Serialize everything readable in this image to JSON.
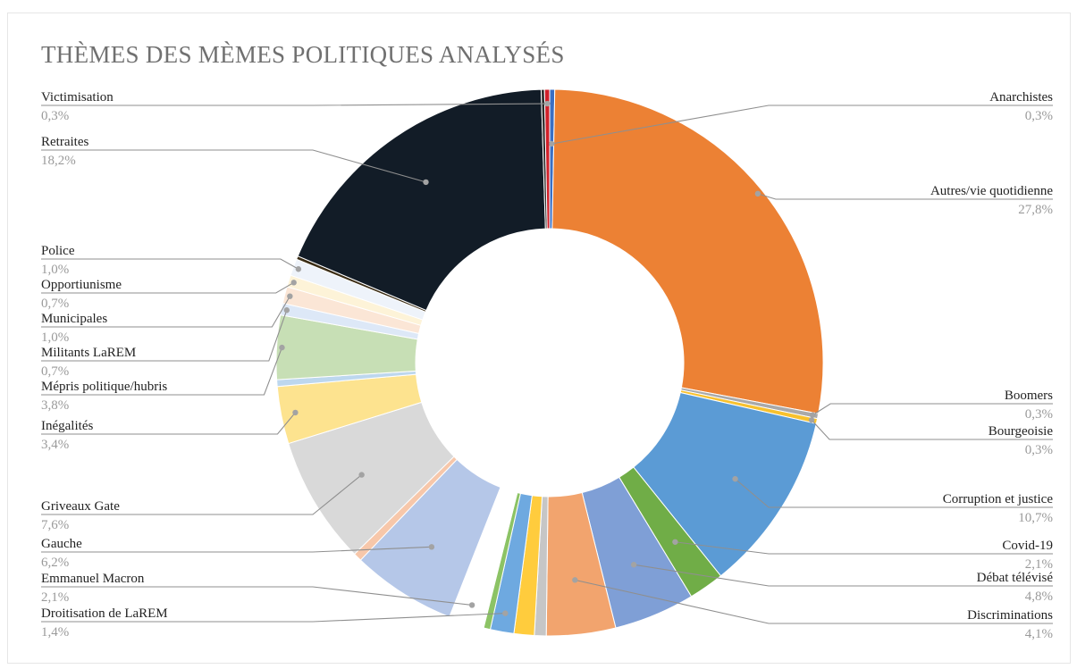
{
  "chart_data": {
    "type": "pie",
    "title": "THÈMES DES MÈMES POLITIQUES ANALYSÉS",
    "legend": "none",
    "slices": [
      {
        "label": "Anarchistes",
        "value": 0.3,
        "value_label": "0,3%",
        "color": "#3a6fc4"
      },
      {
        "label": "Autres/vie quotidienne",
        "value": 27.8,
        "value_label": "27,8%",
        "color": "#ec8134"
      },
      {
        "label": "Boomers",
        "value": 0.3,
        "value_label": "0,3%",
        "color": "#a9a9a9"
      },
      {
        "label": "Bourgeoisie",
        "value": 0.3,
        "value_label": "0,3%",
        "color": "#f7c12e"
      },
      {
        "label": "Corruption et justice",
        "value": 10.7,
        "value_label": "10,7%",
        "color": "#5b9bd5"
      },
      {
        "label": "Covid-19",
        "value": 2.1,
        "value_label": "2,1%",
        "color": "#70ad47"
      },
      {
        "label": "Débat télévisé",
        "value": 4.8,
        "value_label": "4,8%",
        "color": "#7f9fd6"
      },
      {
        "label": "Discriminations",
        "value": 4.1,
        "value_label": "4,1%",
        "color": "#f2a46e"
      },
      {
        "label": "",
        "value": 0.7,
        "color": "#c6c6c6"
      },
      {
        "label": "",
        "value": 1.2,
        "color": "#ffcc3d"
      },
      {
        "label": "Droitisation de LaREM",
        "value": 1.4,
        "value_label": "1,4%",
        "color": "#6ea9e0"
      },
      {
        "label": "",
        "value": 0.4,
        "color": "#8cc365"
      },
      {
        "label": "Emmanuel Macron",
        "value": 2.1,
        "value_label": "2,1%",
        "color": ""
      },
      {
        "label": "Gauche",
        "value": 6.2,
        "value_label": "6,2%",
        "color": "#b5c7e8"
      },
      {
        "label": "",
        "value": 0.5,
        "color": "#f7c7aa"
      },
      {
        "label": "Griveaux Gate",
        "value": 7.6,
        "value_label": "7,6%",
        "color": "#d9d9d9"
      },
      {
        "label": "Inégalités",
        "value": 3.4,
        "value_label": "3,4%",
        "color": "#fde38f"
      },
      {
        "label": "",
        "value": 0.4,
        "color": "#bdd7ee"
      },
      {
        "label": "Mépris politique/hubris",
        "value": 3.8,
        "value_label": "3,8%",
        "color": "#c7dfb5"
      },
      {
        "label": "Militants LaREM",
        "value": 0.7,
        "value_label": "0,7%",
        "color": "#dde8f7"
      },
      {
        "label": "Municipales",
        "value": 1.0,
        "value_label": "1,0%",
        "color": "#fbe6d6"
      },
      {
        "label": "Opportiunisme",
        "value": 0.7,
        "value_label": "0,7%",
        "color": "#fdf3d8"
      },
      {
        "label": "Police",
        "value": 1.0,
        "value_label": "1,0%",
        "color": "#eef3fa"
      },
      {
        "label": "",
        "value": 0.2,
        "color": "#3a2c14"
      },
      {
        "label": "Retraites",
        "value": 18.2,
        "value_label": "18,2%",
        "color": "#121c27"
      },
      {
        "label": "",
        "value": 0.2,
        "color": "#2b2b2b"
      },
      {
        "label": "Victimisation",
        "value": 0.3,
        "value_label": "0,3%",
        "color": "#d0202a"
      }
    ]
  }
}
